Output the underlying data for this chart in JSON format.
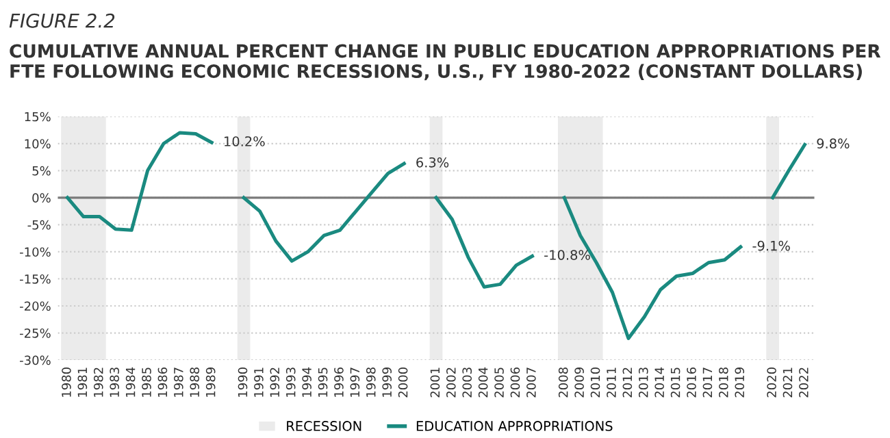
{
  "chart_data": {
    "type": "line",
    "title": "FIGURE 2.2",
    "subtitle": "CUMULATIVE ANNUAL PERCENT CHANGE IN PUBLIC EDUCATION APPROPRIATIONS PER FTE FOLLOWING ECONOMIC RECESSIONS, U.S., FY 1980-2022 (CONSTANT DOLLARS)",
    "categories": [
      "1980",
      "1981",
      "1982",
      "1983",
      "1984",
      "1985",
      "1986",
      "1987",
      "1988",
      "1989",
      null,
      "1990",
      "1991",
      "1992",
      "1993",
      "1994",
      "1995",
      "1996",
      "1997",
      "1998",
      "1999",
      "2000",
      null,
      "2001",
      "2002",
      "2003",
      "2004",
      "2005",
      "2006",
      "2007",
      null,
      "2008",
      "2009",
      "2010",
      "2011",
      "2012",
      "2013",
      "2014",
      "2015",
      "2016",
      "2017",
      "2018",
      "2019",
      null,
      "2020",
      "2021",
      "2022"
    ],
    "series": [
      {
        "name": "EDUCATION APPROPRIATIONS",
        "color": "#1a8a80",
        "values": [
          0,
          -3.5,
          -3.5,
          -5.8,
          -6,
          5,
          10,
          12,
          11.8,
          10.2,
          null,
          0,
          -2.5,
          -8,
          -11.7,
          -10,
          -7,
          -6,
          -2.5,
          1,
          4.5,
          6.3,
          null,
          0,
          -4,
          -11,
          -16.5,
          -16,
          -12.5,
          -10.8,
          null,
          0,
          -7,
          -12,
          -17.5,
          -26,
          -22,
          -17,
          -14.5,
          -14,
          -12,
          -11.5,
          -9.1,
          null,
          0,
          5,
          9.8
        ],
        "value_labels": [
          null,
          null,
          null,
          null,
          null,
          null,
          null,
          null,
          null,
          "10.2%",
          null,
          null,
          null,
          null,
          null,
          null,
          null,
          null,
          null,
          null,
          null,
          "6.3%",
          null,
          null,
          null,
          null,
          null,
          null,
          null,
          "-10.8%",
          null,
          null,
          null,
          null,
          null,
          null,
          null,
          null,
          null,
          null,
          null,
          null,
          "-9.1%",
          null,
          null,
          null,
          "9.8%"
        ]
      }
    ],
    "ylim": [
      -30,
      15
    ],
    "yticks": [
      {
        "value": -30,
        "label": "-30%"
      },
      {
        "value": -25,
        "label": "-25%"
      },
      {
        "value": -20,
        "label": "-20%"
      },
      {
        "value": -15,
        "label": "-15%"
      },
      {
        "value": -10,
        "label": "-10%"
      },
      {
        "value": -5,
        "label": "-5%"
      },
      {
        "value": 0,
        "label": "0%"
      },
      {
        "value": 5,
        "label": "5%"
      },
      {
        "value": 10,
        "label": "10%"
      },
      {
        "value": 15,
        "label": "15%"
      }
    ],
    "grid": "y",
    "ref_lines": [
      {
        "axis": "y",
        "value": 0,
        "color": "#7a7a7a"
      }
    ],
    "bands": [
      {
        "axis": "x",
        "from": "1980",
        "to": "1982",
        "label": "RECESSION",
        "color": "#ebebeb"
      },
      {
        "axis": "x",
        "from": "1990",
        "to": "1990",
        "color": "#ebebeb"
      },
      {
        "axis": "x",
        "from": "2001",
        "to": "2001",
        "color": "#ebebeb"
      },
      {
        "axis": "x",
        "from": "2008",
        "to": "2010",
        "color": "#ebebeb"
      },
      {
        "axis": "x",
        "from": "2020",
        "to": "2020",
        "color": "#ebebeb"
      }
    ],
    "legend": "bottom",
    "line_style": "solid",
    "marker": "none"
  }
}
